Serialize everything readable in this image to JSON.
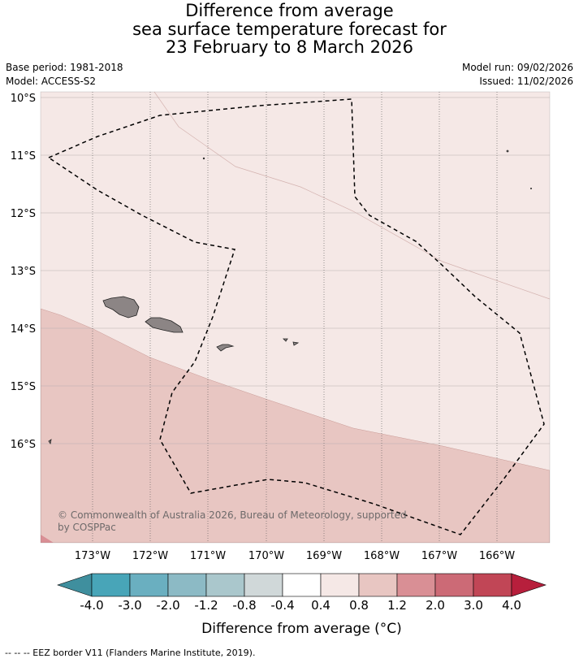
{
  "title": {
    "line1": "Difference from average",
    "line2": "sea surface temperature forecast for",
    "line3": "23 February to 8 March 2026"
  },
  "meta": {
    "base_period": "Base period: 1981-2018",
    "model": "Model: ACCESS-S2",
    "model_run": "Model run: 09/02/2026",
    "issued": "Issued: 11/02/2026"
  },
  "map": {
    "lat_labels": [
      "10°S",
      "11°S",
      "12°S",
      "13°S",
      "14°S",
      "15°S",
      "16°S"
    ],
    "lon_labels": [
      "173°W",
      "172°W",
      "171°W",
      "170°W",
      "169°W",
      "168°W",
      "167°W",
      "166°W"
    ],
    "copyright": "© Commonwealth of Australia 2026, Bureau of Meteorology, supported",
    "copyright2": "by COSPPac",
    "colors": {
      "band_0_4_to_0_8": "#f5e8e6",
      "band_0_8_to_1_2": "#e8c6c2",
      "band_1_2_to_2_0": "#d98f95",
      "land": "#8c8585"
    }
  },
  "colorbar": {
    "title": "Difference from average (°C)",
    "ticks": [
      "-4.0",
      "-3.0",
      "-2.0",
      "-1.2",
      "-0.8",
      "-0.4",
      "0.4",
      "0.8",
      "1.2",
      "2.0",
      "3.0",
      "4.0"
    ],
    "colors": [
      "#3f8f9e",
      "#48a5b8",
      "#6aafc0",
      "#8cbac5",
      "#aac7cc",
      "#d0d8d9",
      "#ffffff",
      "#f5e8e6",
      "#e8c6c2",
      "#d98f95",
      "#cc6a76",
      "#c14656",
      "#b71f3c"
    ]
  },
  "footer": "--  --  -- EEZ border V11 (Flanders Marine Institute, 2019)."
}
